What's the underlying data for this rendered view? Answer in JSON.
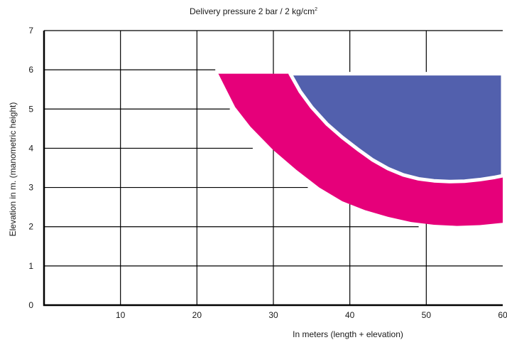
{
  "chart_data": {
    "type": "area",
    "title": "Delivery pressure 2 bar / 2 kg/cm",
    "title_superscript": "2",
    "xlabel": "In meters (length + elevation)",
    "ylabel": "Elevation in m. (manometric height)",
    "xlim": [
      0,
      60
    ],
    "ylim": [
      0,
      7
    ],
    "xticks": [
      10,
      20,
      30,
      40,
      50,
      60
    ],
    "yticks": [
      0,
      1,
      2,
      3,
      4,
      5,
      6,
      7
    ],
    "grid": true,
    "colors": {
      "outer_band": "#e6007a",
      "inner_region": "#5260ad",
      "grid": "#000000"
    },
    "series": [
      {
        "color": "#e6007a",
        "upper_y": 5.9,
        "boundary": [
          [
            22.8,
            5.9
          ],
          [
            25.0,
            5.05
          ],
          [
            27.0,
            4.55
          ],
          [
            30.0,
            3.95
          ],
          [
            33.0,
            3.45
          ],
          [
            36.0,
            3.0
          ],
          [
            39.0,
            2.65
          ],
          [
            42.0,
            2.42
          ],
          [
            45.0,
            2.25
          ],
          [
            48.0,
            2.12
          ],
          [
            51.0,
            2.05
          ],
          [
            54.0,
            2.02
          ],
          [
            57.0,
            2.04
          ],
          [
            60.0,
            2.1
          ]
        ]
      },
      {
        "color": "#5260ad",
        "upper_y": 5.9,
        "boundary": [
          [
            32.2,
            5.9
          ],
          [
            33.5,
            5.45
          ],
          [
            35.0,
            5.05
          ],
          [
            37.0,
            4.62
          ],
          [
            39.0,
            4.28
          ],
          [
            41.0,
            3.98
          ],
          [
            43.0,
            3.7
          ],
          [
            45.0,
            3.48
          ],
          [
            47.0,
            3.32
          ],
          [
            49.0,
            3.22
          ],
          [
            51.0,
            3.17
          ],
          [
            53.0,
            3.15
          ],
          [
            55.0,
            3.16
          ],
          [
            57.0,
            3.2
          ],
          [
            59.0,
            3.26
          ],
          [
            60.0,
            3.3
          ]
        ]
      }
    ],
    "fading_gridlines": [
      {
        "y": 6,
        "x_end": 22.4
      },
      {
        "y": 5,
        "x_end": 24.3
      },
      {
        "y": 4,
        "x_end": 27.3
      },
      {
        "y": 3,
        "x_end": 34.5
      },
      {
        "y": 2,
        "x_end": 49.0
      }
    ]
  }
}
